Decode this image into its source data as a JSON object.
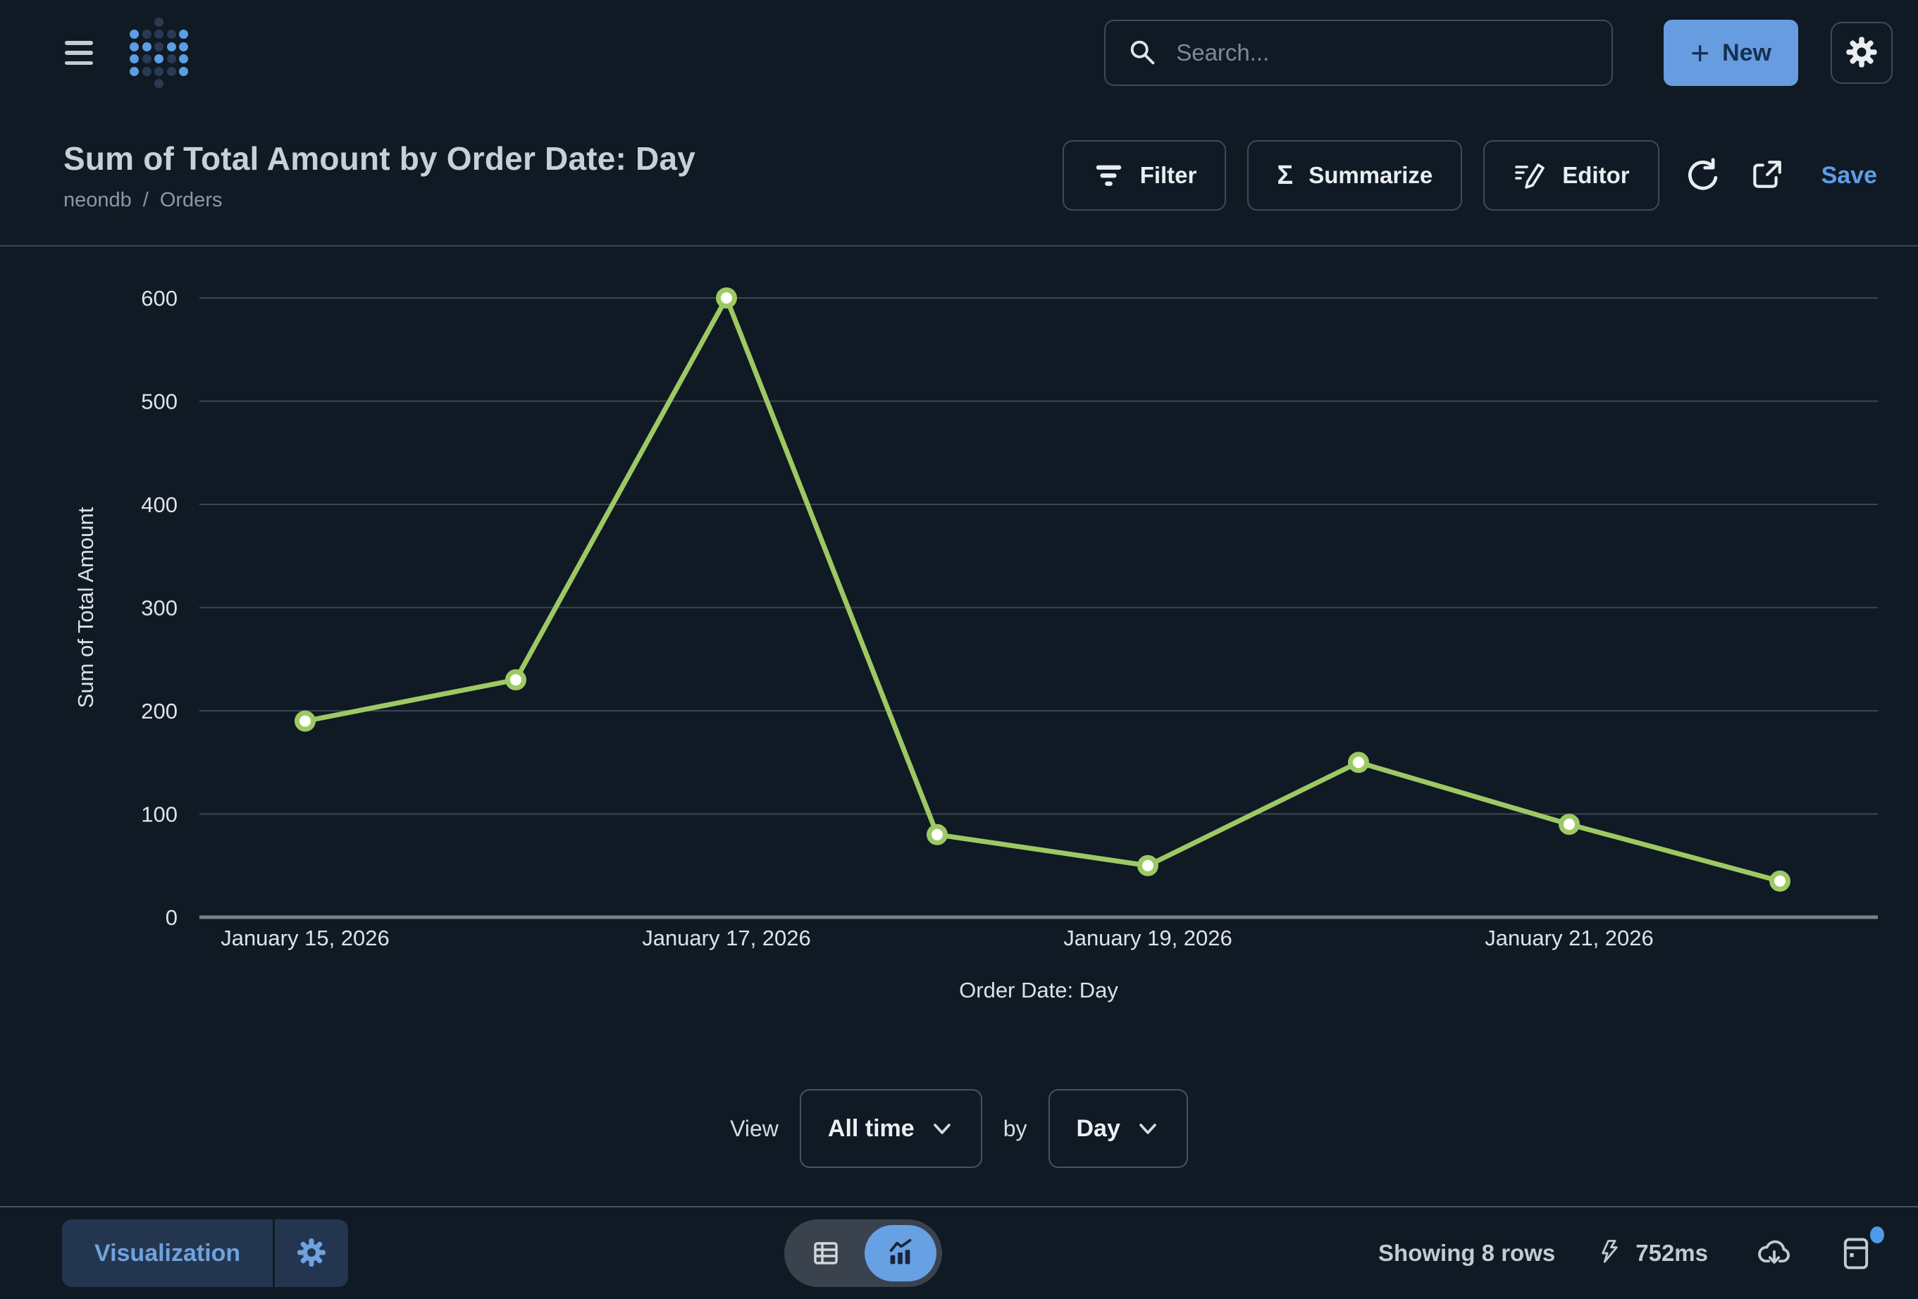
{
  "header": {
    "search_placeholder": "Search...",
    "new_button_label": "New"
  },
  "logo": {
    "pattern": [
      "..d..",
      "bdddb",
      "bbdbb",
      "bdbdb",
      "bdddb",
      "..d.."
    ],
    "blue": "#5C9DE3",
    "dark": "#2A3A52"
  },
  "title_bar": {
    "title": "Sum of Total Amount by Order Date: Day",
    "breadcrumb": {
      "database": "neondb",
      "separator": "/",
      "table": "Orders"
    },
    "toolbar": {
      "filter_label": "Filter",
      "summarize_label": "Summarize",
      "editor_label": "Editor",
      "save_label": "Save"
    }
  },
  "icons": {
    "menu": "hamburger",
    "logo": "metabase-dots",
    "search": "magnifier",
    "plus": "+",
    "sigma": "Σ",
    "settings": "gear",
    "filter": "funnel-bars",
    "editor": "pencil-with-lines",
    "refresh": "circular-arrow",
    "share": "open-external-arrow",
    "chevron_down": "chevron",
    "table_view": "table-grid",
    "chart_view": "trend-line-bars",
    "runtime": "lightning-bolt",
    "download": "cloud-download",
    "events": "journal-calendar"
  },
  "chart_data": {
    "type": "line",
    "title": "Sum of Total Amount by Order Date: Day",
    "x": [
      "January 15, 2026",
      "January 16, 2026",
      "January 17, 2026",
      "January 18, 2026",
      "January 19, 2026",
      "January 20, 2026",
      "January 21, 2026",
      "January 22, 2026"
    ],
    "values": [
      190,
      230,
      600,
      80,
      50,
      150,
      90,
      35
    ],
    "x_tick_labels": [
      "January 15, 2026",
      "January 17, 2026",
      "January 19, 2026",
      "January 21, 2026"
    ],
    "x_tick_indices": [
      0,
      2,
      4,
      6
    ],
    "y_ticks": [
      0,
      100,
      200,
      300,
      400,
      500,
      600
    ],
    "ylim": [
      0,
      600
    ],
    "xlabel": "Order Date: Day",
    "ylabel": "Sum of Total Amount",
    "grid": true,
    "legend": false,
    "colors": {
      "line": "#9DC964",
      "dot_fill": "#FFFFFF",
      "gridline": "#3B4650",
      "axis_line": "#7A828C",
      "tick_text": "#DFE3E8",
      "axis_title_text": "#DCE1E6"
    }
  },
  "view_controls": {
    "view_label": "View",
    "range_value": "All time",
    "by_label": "by",
    "granularity_value": "Day"
  },
  "footer": {
    "visualization_label": "Visualization",
    "row_count": "Showing 8 rows",
    "runtime": "752ms"
  },
  "colors": {
    "accent_blue": "#5C9DE3",
    "background": "#0F1A24"
  }
}
